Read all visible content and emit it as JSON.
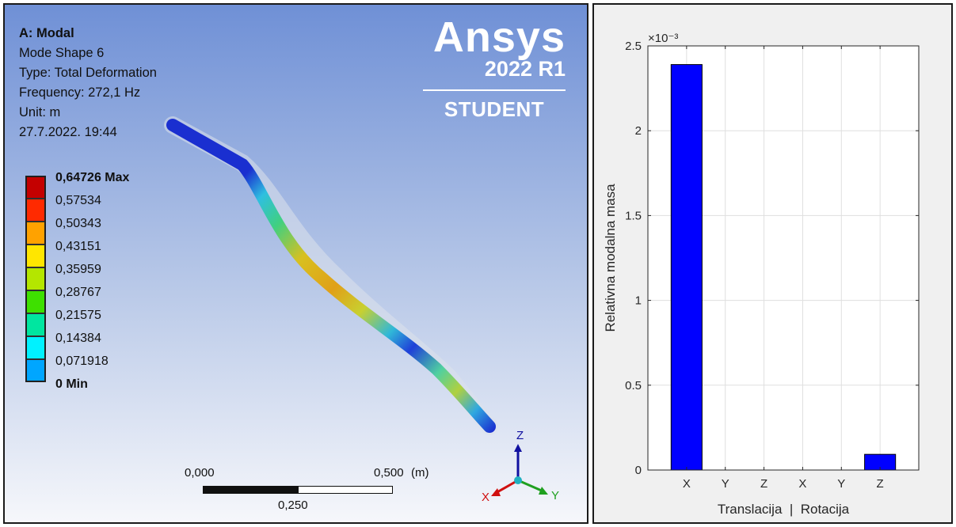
{
  "ansys": {
    "title": "A: Modal",
    "mode_shape": "Mode Shape 6",
    "type": "Type: Total Deformation",
    "frequency": "Frequency: 272,1 Hz",
    "unit": "Unit: m",
    "timestamp": "27.7.2022. 19:44",
    "logo": {
      "brand": "Ansys",
      "version": "2022 R1",
      "edition": "STUDENT"
    },
    "legend": [
      {
        "label": "0,64726 Max",
        "color": "#c40000"
      },
      {
        "label": "0,57534",
        "color": "#ff2a00"
      },
      {
        "label": "0,50343",
        "color": "#ffa200"
      },
      {
        "label": "0,43151",
        "color": "#ffe600"
      },
      {
        "label": "0,35959",
        "color": "#b4e600"
      },
      {
        "label": "0,28767",
        "color": "#3ee000"
      },
      {
        "label": "0,21575",
        "color": "#00e6a0"
      },
      {
        "label": "0,14384",
        "color": "#00f2ff"
      },
      {
        "label": "0,071918",
        "color": "#00a6ff"
      },
      {
        "label": "0 Min",
        "color": "#0000ff"
      }
    ],
    "scale_bar": {
      "start": "0,000",
      "mid": "0,250",
      "end": "0,500",
      "unit": "(m)"
    },
    "triad": {
      "z": "Z",
      "y": "Y",
      "x": "X"
    }
  },
  "chart_data": {
    "type": "bar",
    "categories": [
      "X",
      "Y",
      "Z",
      "X",
      "Y",
      "Z"
    ],
    "values": [
      0.00239,
      0,
      0,
      0,
      0,
      9.25e-05
    ],
    "xlabel": "Translacija  |  Rotacija",
    "ylabel": "Relativna modalna masa",
    "ylim": [
      0,
      0.0025
    ],
    "yticks": [
      {
        "v": 0,
        "label": "0"
      },
      {
        "v": 0.0005,
        "label": "0.5"
      },
      {
        "v": 0.001,
        "label": "1"
      },
      {
        "v": 0.0015,
        "label": "1.5"
      },
      {
        "v": 0.002,
        "label": "2"
      },
      {
        "v": 0.0025,
        "label": "2.5"
      }
    ],
    "exponent_label": "×10⁻³",
    "grid": true,
    "bar_color": "#0000ff"
  }
}
